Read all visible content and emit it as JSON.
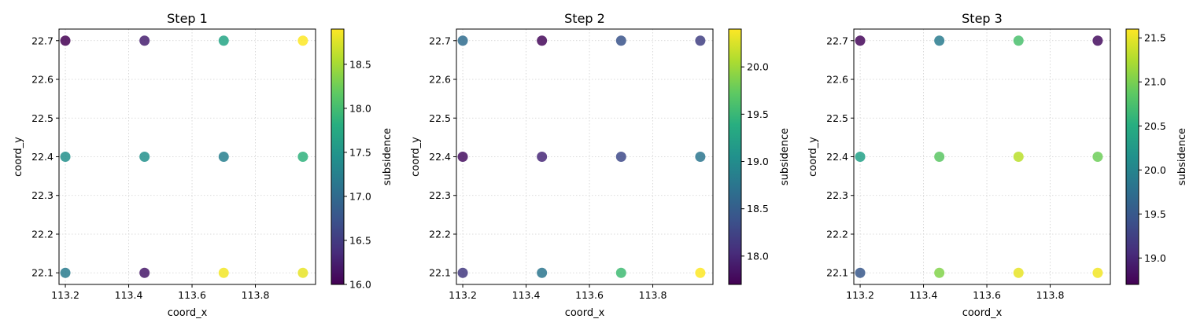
{
  "chart_data": [
    {
      "type": "scatter",
      "title": "Step 1",
      "xlabel": "coord_x",
      "ylabel": "coord_y",
      "colorbar_label": "subsidence",
      "colormap": "viridis",
      "xlim": [
        113.18,
        113.99
      ],
      "ylim": [
        22.07,
        22.73
      ],
      "xticks": [
        113.2,
        113.4,
        113.6,
        113.8
      ],
      "xtick_labels": [
        "113.2",
        "113.4",
        "113.6",
        "113.8"
      ],
      "yticks": [
        22.1,
        22.2,
        22.3,
        22.4,
        22.5,
        22.6,
        22.7
      ],
      "ytick_labels": [
        "22.1",
        "22.2",
        "22.3",
        "22.4",
        "22.5",
        "22.6",
        "22.7"
      ],
      "clim": [
        16.0,
        18.9
      ],
      "cticks": [
        16.0,
        16.5,
        17.0,
        17.5,
        18.0,
        18.5
      ],
      "ctick_labels": [
        "16.0",
        "16.5",
        "17.0",
        "17.5",
        "18.0",
        "18.5"
      ],
      "grid": true,
      "points": [
        {
          "x": 113.2,
          "y": 22.7,
          "value": 16.0
        },
        {
          "x": 113.45,
          "y": 22.7,
          "value": 16.25
        },
        {
          "x": 113.7,
          "y": 22.7,
          "value": 17.7
        },
        {
          "x": 113.95,
          "y": 22.7,
          "value": 18.9
        },
        {
          "x": 113.2,
          "y": 22.4,
          "value": 17.45
        },
        {
          "x": 113.45,
          "y": 22.4,
          "value": 17.45
        },
        {
          "x": 113.7,
          "y": 22.4,
          "value": 17.25
        },
        {
          "x": 113.95,
          "y": 22.4,
          "value": 17.85
        },
        {
          "x": 113.2,
          "y": 22.1,
          "value": 17.2
        },
        {
          "x": 113.45,
          "y": 22.1,
          "value": 16.2
        },
        {
          "x": 113.7,
          "y": 22.1,
          "value": 18.85
        },
        {
          "x": 113.95,
          "y": 22.1,
          "value": 18.8
        }
      ]
    },
    {
      "type": "scatter",
      "title": "Step 2",
      "xlabel": "coord_x",
      "ylabel": "coord_y",
      "colorbar_label": "subsidence",
      "colormap": "viridis",
      "xlim": [
        113.18,
        113.99
      ],
      "ylim": [
        22.07,
        22.73
      ],
      "xticks": [
        113.2,
        113.4,
        113.6,
        113.8
      ],
      "xtick_labels": [
        "113.2",
        "113.4",
        "113.6",
        "113.8"
      ],
      "yticks": [
        22.1,
        22.2,
        22.3,
        22.4,
        22.5,
        22.6,
        22.7
      ],
      "ytick_labels": [
        "22.1",
        "22.2",
        "22.3",
        "22.4",
        "22.5",
        "22.6",
        "22.7"
      ],
      "clim": [
        17.7,
        20.4
      ],
      "cticks": [
        18.0,
        18.5,
        19.0,
        19.5,
        20.0
      ],
      "ctick_labels": [
        "18.0",
        "18.5",
        "19.0",
        "19.5",
        "20.0"
      ],
      "grid": true,
      "points": [
        {
          "x": 113.2,
          "y": 22.7,
          "value": 18.65
        },
        {
          "x": 113.45,
          "y": 22.7,
          "value": 17.75
        },
        {
          "x": 113.7,
          "y": 22.7,
          "value": 18.4
        },
        {
          "x": 113.95,
          "y": 22.7,
          "value": 18.2
        },
        {
          "x": 113.2,
          "y": 22.4,
          "value": 17.8
        },
        {
          "x": 113.45,
          "y": 22.4,
          "value": 18.0
        },
        {
          "x": 113.7,
          "y": 22.4,
          "value": 18.3
        },
        {
          "x": 113.95,
          "y": 22.4,
          "value": 18.75
        },
        {
          "x": 113.2,
          "y": 22.1,
          "value": 18.15
        },
        {
          "x": 113.45,
          "y": 22.1,
          "value": 18.75
        },
        {
          "x": 113.7,
          "y": 22.1,
          "value": 19.55
        },
        {
          "x": 113.95,
          "y": 22.1,
          "value": 20.4
        }
      ]
    },
    {
      "type": "scatter",
      "title": "Step 3",
      "xlabel": "coord_x",
      "ylabel": "coord_y",
      "colorbar_label": "subsidence",
      "colormap": "viridis",
      "xlim": [
        113.18,
        113.99
      ],
      "ylim": [
        22.07,
        22.73
      ],
      "xticks": [
        113.2,
        113.4,
        113.6,
        113.8
      ],
      "xtick_labels": [
        "113.2",
        "113.4",
        "113.6",
        "113.8"
      ],
      "yticks": [
        22.1,
        22.2,
        22.3,
        22.4,
        22.5,
        22.6,
        22.7
      ],
      "ytick_labels": [
        "22.1",
        "22.2",
        "22.3",
        "22.4",
        "22.5",
        "22.6",
        "22.7"
      ],
      "clim": [
        18.7,
        21.6
      ],
      "cticks": [
        19.0,
        19.5,
        20.0,
        20.5,
        21.0,
        21.5
      ],
      "ctick_labels": [
        "19.0",
        "19.5",
        "20.0",
        "20.5",
        "21.0",
        "21.5"
      ],
      "grid": true,
      "points": [
        {
          "x": 113.2,
          "y": 22.7,
          "value": 18.75
        },
        {
          "x": 113.45,
          "y": 22.7,
          "value": 19.9
        },
        {
          "x": 113.7,
          "y": 22.7,
          "value": 20.75
        },
        {
          "x": 113.95,
          "y": 22.7,
          "value": 18.8
        },
        {
          "x": 113.2,
          "y": 22.4,
          "value": 20.35
        },
        {
          "x": 113.45,
          "y": 22.4,
          "value": 20.85
        },
        {
          "x": 113.7,
          "y": 22.4,
          "value": 21.3
        },
        {
          "x": 113.95,
          "y": 22.4,
          "value": 20.95
        },
        {
          "x": 113.2,
          "y": 22.1,
          "value": 19.5
        },
        {
          "x": 113.45,
          "y": 22.1,
          "value": 21.05
        },
        {
          "x": 113.7,
          "y": 22.1,
          "value": 21.5
        },
        {
          "x": 113.95,
          "y": 22.1,
          "value": 21.55
        }
      ]
    }
  ]
}
